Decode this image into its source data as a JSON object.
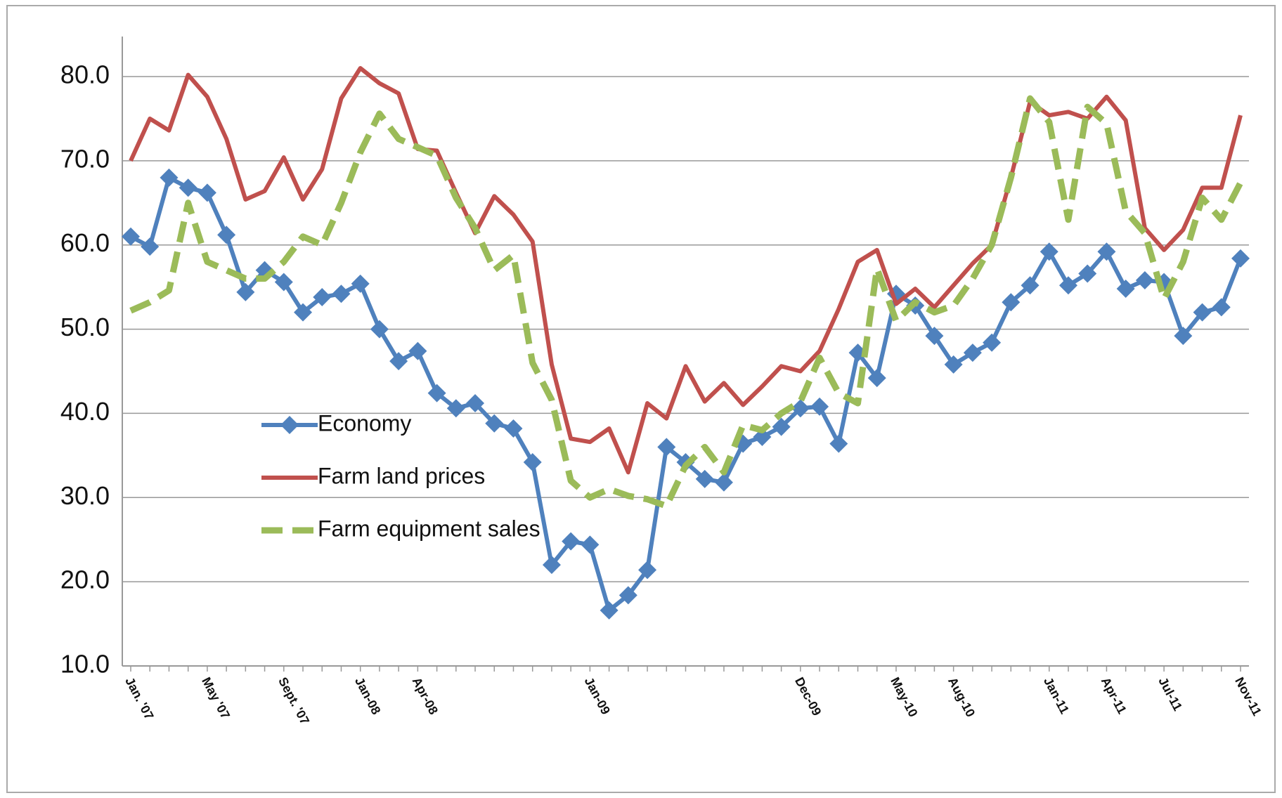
{
  "chart_data": {
    "type": "line",
    "categories": [
      "Jan. '07",
      null,
      null,
      null,
      "May '07",
      null,
      null,
      null,
      "Sept. '07",
      null,
      null,
      null,
      "Jan-08",
      null,
      null,
      "Apr-08",
      null,
      null,
      null,
      null,
      null,
      null,
      null,
      null,
      "Jan-09",
      null,
      null,
      null,
      null,
      null,
      null,
      null,
      null,
      null,
      null,
      "Dec-09",
      null,
      null,
      null,
      null,
      "May-10",
      null,
      null,
      "Aug-10",
      null,
      null,
      null,
      null,
      "Jan-11",
      null,
      null,
      "Apr-11",
      null,
      null,
      "Jul-11",
      null,
      null,
      null,
      "Nov-11"
    ],
    "series": [
      {
        "name": "Economy",
        "color": "#4f81bd",
        "marker": "diamond",
        "values": [
          61.0,
          59.8,
          68.0,
          66.8,
          66.2,
          61.2,
          54.4,
          57.0,
          55.6,
          52.0,
          53.8,
          54.2,
          55.4,
          50.0,
          46.2,
          47.4,
          42.4,
          40.6,
          41.2,
          38.8,
          38.2,
          34.2,
          22.0,
          24.8,
          24.4,
          16.6,
          18.4,
          21.4,
          36.0,
          34.2,
          32.2,
          31.8,
          36.4,
          37.2,
          38.4,
          40.6,
          40.8,
          36.4,
          47.2,
          44.2,
          54.2,
          52.8,
          49.2,
          45.8,
          47.2,
          48.4,
          53.2,
          55.2,
          59.2,
          55.2,
          56.6,
          59.2,
          54.8,
          55.8,
          55.6,
          49.2,
          52.0,
          52.6,
          58.4
        ]
      },
      {
        "name": "Farm land prices",
        "color": "#c0504d",
        "values": [
          70.0,
          75.0,
          73.6,
          80.2,
          77.6,
          72.6,
          65.4,
          66.4,
          70.4,
          65.4,
          69.0,
          77.4,
          81.0,
          79.2,
          78.0,
          71.4,
          71.2,
          66.2,
          61.4,
          65.8,
          63.6,
          60.4,
          45.8,
          37.0,
          36.6,
          38.2,
          33.0,
          41.2,
          39.4,
          45.6,
          41.4,
          43.6,
          41.0,
          43.2,
          45.6,
          45.0,
          47.4,
          52.4,
          58.0,
          59.4,
          53.0,
          54.8,
          52.6,
          55.2,
          57.8,
          60.0,
          68.0,
          77.0,
          75.4,
          75.8,
          75.0,
          77.6,
          74.8,
          62.0,
          59.4,
          61.8,
          66.8,
          66.8,
          75.4
        ]
      },
      {
        "name": "Farm equipment sales",
        "color": "#9bbb59",
        "dashed": true,
        "values": [
          52.2,
          53.2,
          54.6,
          65.0,
          58.0,
          57.0,
          56.0,
          56.0,
          58.0,
          61.0,
          60.0,
          65.0,
          71.0,
          75.6,
          72.6,
          71.6,
          70.6,
          65.6,
          62.0,
          57.0,
          58.8,
          46.0,
          41.6,
          32.0,
          30.0,
          31.0,
          30.2,
          29.8,
          29.0,
          33.8,
          36.0,
          33.0,
          38.6,
          38.0,
          40.0,
          41.4,
          46.6,
          42.4,
          41.2,
          57.2,
          51.0,
          53.2,
          52.0,
          52.8,
          56.0,
          60.0,
          68.0,
          77.4,
          74.6,
          63.0,
          76.4,
          74.4,
          64.0,
          61.4,
          53.6,
          58.0,
          65.6,
          63.0,
          67.4
        ]
      }
    ],
    "ylim": [
      10,
      80
    ],
    "yticks": [
      {
        "value": 10,
        "label": "10.0"
      },
      {
        "value": 20,
        "label": "20.0"
      },
      {
        "value": 30,
        "label": "30.0"
      },
      {
        "value": 40,
        "label": "40.0"
      },
      {
        "value": 50,
        "label": "50.0"
      },
      {
        "value": 60,
        "label": "60.0"
      },
      {
        "value": 70,
        "label": "70.0"
      },
      {
        "value": 80,
        "label": "80.0"
      }
    ],
    "grid": true,
    "legend": "center-left"
  }
}
